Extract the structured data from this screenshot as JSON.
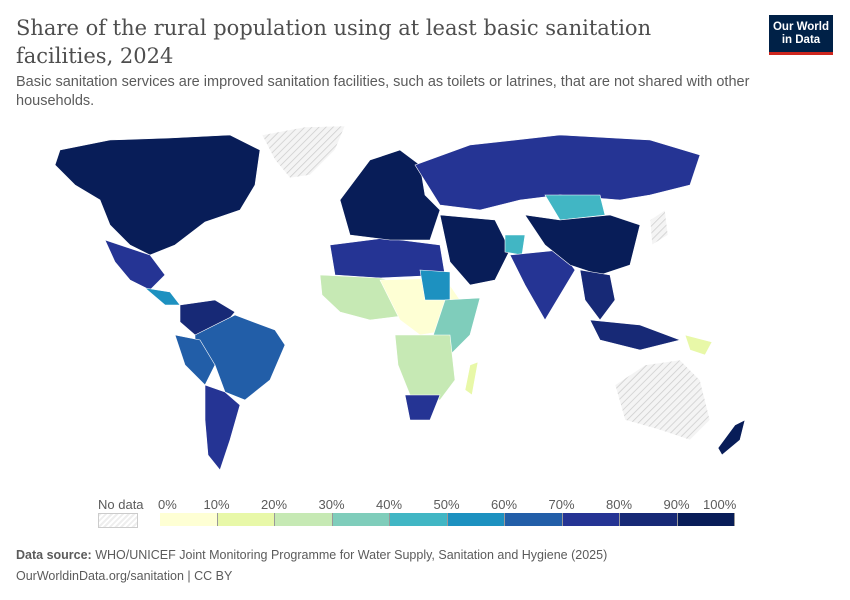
{
  "header": {
    "title": "Share of the rural population using at least basic sanitation facilities, 2024",
    "subtitle": "Basic sanitation services are improved sanitation facilities, such as toilets or latrines, that are not shared with other households.",
    "logo": "Our World in Data"
  },
  "legend": {
    "no_data": "No data",
    "ticks": [
      "0%",
      "10%",
      "20%",
      "30%",
      "40%",
      "50%",
      "60%",
      "70%",
      "80%",
      "90%",
      "100%"
    ],
    "colors": [
      "#feffd4",
      "#e8f8a8",
      "#c6e9b4",
      "#7fcdbb",
      "#41b6c4",
      "#1d91c0",
      "#225ea8",
      "#253494",
      "#172976",
      "#081d58"
    ],
    "no_data_color": "#eeeeee"
  },
  "footer": {
    "source_label": "Data source:",
    "source": "WHO/UNICEF Joint Monitoring Programme for Water Supply, Sanitation and Hygiene (2025)",
    "url": "OurWorldinData.org/sanitation | CC BY"
  }
}
